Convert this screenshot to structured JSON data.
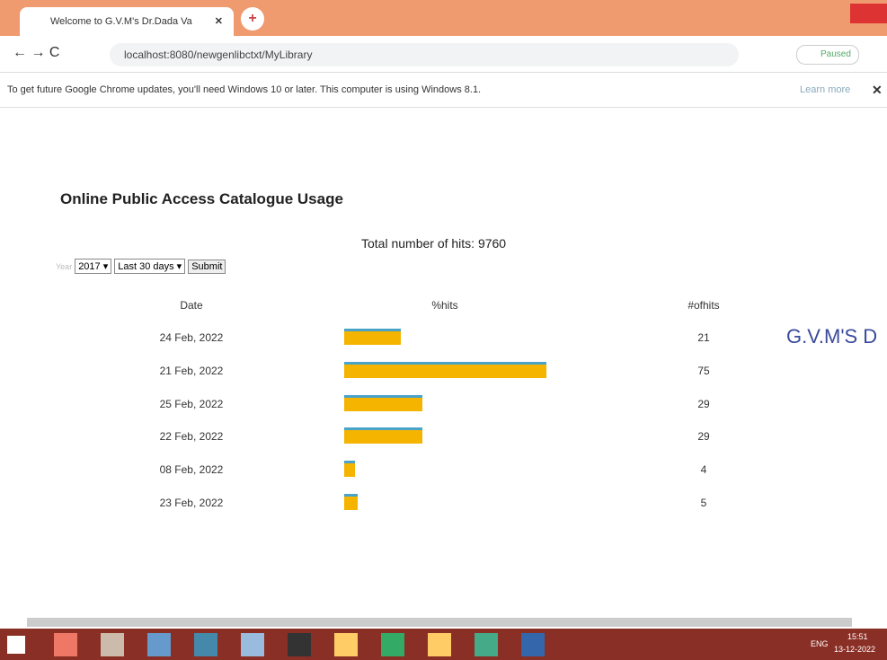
{
  "browser": {
    "tab_title": "Welcome to G.V.M's Dr.Dada Va",
    "url": "localhost:8080/newgenlibctxt/MyLibrary",
    "profile_status": "Paused",
    "infobar": {
      "message": "To get future Google Chrome updates, you'll need Windows 10 or later. This computer is using Windows 8.1.",
      "link": "Learn more"
    }
  },
  "page": {
    "title": "Online Public Access Catalogue Usage",
    "total_hits": "Total number of hits: 9760",
    "form": {
      "year_label": "Year",
      "year": "2017",
      "period": "Last 30 days",
      "submit": "Submit"
    },
    "logo_text": "G.V.M'S D"
  },
  "table": {
    "columns": [
      "Date",
      "%hits",
      "#ofhits"
    ],
    "rows": [
      {
        "date": "24 Feb, 2022",
        "hits": 21
      },
      {
        "date": "21 Feb, 2022",
        "hits": 75
      },
      {
        "date": "25 Feb, 2022",
        "hits": 29
      },
      {
        "date": "22 Feb, 2022",
        "hits": 29
      },
      {
        "date": "08 Feb, 2022",
        "hits": 4
      },
      {
        "date": "23 Feb, 2022",
        "hits": 5
      }
    ]
  },
  "taskbar": {
    "language": "ENG",
    "time": "15:51",
    "date": "13-12-2022"
  }
}
